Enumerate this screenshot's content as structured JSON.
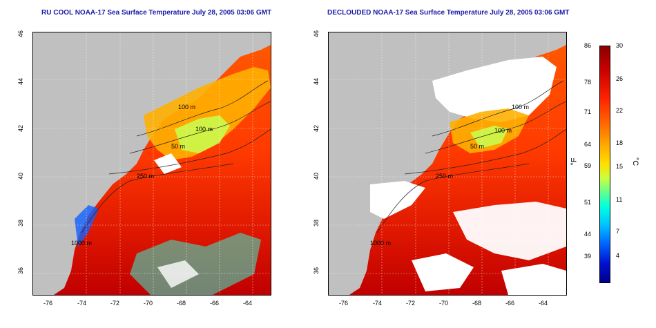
{
  "titles": {
    "left": "RU COOL NOAA-17 Sea Surface Temperature July 28, 2005 03:06 GMT",
    "right": "DECLOUDED NOAA-17 Sea Surface Temperature July 28, 2005 03:06 GMT"
  },
  "axes": {
    "lat_ticks": [
      "46",
      "44",
      "42",
      "40",
      "38",
      "36"
    ],
    "lon_ticks": [
      "-76",
      "-74",
      "-72",
      "-70",
      "-68",
      "-66",
      "-64"
    ]
  },
  "contour_labels": {
    "left": [
      "100 m",
      "100 m",
      "50 m",
      "250 m",
      "1000 m"
    ],
    "right": [
      "100 m",
      "100 m",
      "50 m",
      "250 m",
      "1000 m"
    ]
  },
  "colorbar": {
    "fahrenheit_ticks": [
      "86",
      "78",
      "71",
      "64",
      "59",
      "51",
      "44",
      "39"
    ],
    "celsius_ticks": [
      "30",
      "26",
      "22",
      "18",
      "15",
      "11",
      "7",
      "4"
    ],
    "fahrenheit_unit": "°F",
    "celsius_unit": "°C"
  },
  "colors": {
    "title": "#1a1aa8",
    "land": "#c0c0c0",
    "warm_water": "#e02000",
    "cool_water": "#f0c000",
    "cloud_mask": "#ffffff"
  }
}
